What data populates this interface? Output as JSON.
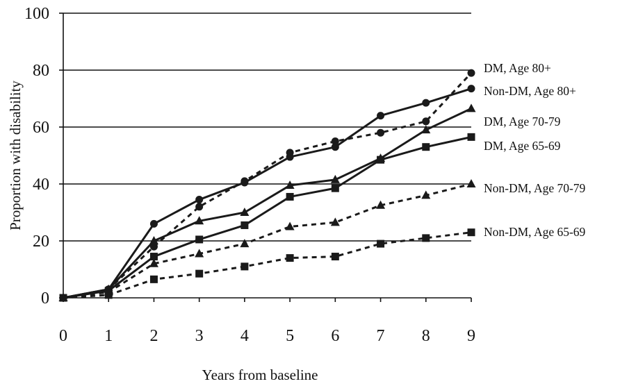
{
  "chart_data": {
    "type": "line",
    "xlabel": "Years from baseline",
    "ylabel": "Proportion with disability",
    "x": [
      0,
      1,
      2,
      3,
      4,
      5,
      6,
      7,
      8,
      9
    ],
    "xlim": [
      0,
      9
    ],
    "ylim": [
      0,
      100
    ],
    "yticks": [
      0,
      20,
      40,
      60,
      80,
      100
    ],
    "grid": "horizontal",
    "series": [
      {
        "name": "DM, Age 80+",
        "style": "dashed",
        "marker": "circle",
        "values": [
          0,
          3,
          18,
          32,
          41,
          51,
          55,
          58,
          62,
          79
        ]
      },
      {
        "name": "Non-DM, Age 80+",
        "style": "solid",
        "marker": "circle",
        "values": [
          0,
          3,
          26,
          34.5,
          40.5,
          49.5,
          53,
          64,
          68.5,
          73.5
        ]
      },
      {
        "name": "DM, Age 70-79",
        "style": "solid",
        "marker": "triangle",
        "values": [
          0,
          3,
          20,
          27,
          30,
          39.5,
          41.5,
          49,
          59,
          66.5
        ]
      },
      {
        "name": "DM, Age 65-69",
        "style": "solid",
        "marker": "square",
        "values": [
          0,
          2.5,
          14.5,
          20.5,
          25.5,
          35.5,
          38.5,
          48.5,
          53,
          56.5
        ]
      },
      {
        "name": "Non-DM, Age 70-79",
        "style": "dashed",
        "marker": "triangle",
        "values": [
          0,
          2,
          12,
          15.5,
          19,
          25,
          26.5,
          32.5,
          36,
          40
        ]
      },
      {
        "name": "Non-DM, Age 65-69",
        "style": "dashed",
        "marker": "square",
        "values": [
          0,
          1,
          6.5,
          8.5,
          11,
          14,
          14.5,
          19,
          21,
          23
        ]
      }
    ]
  }
}
